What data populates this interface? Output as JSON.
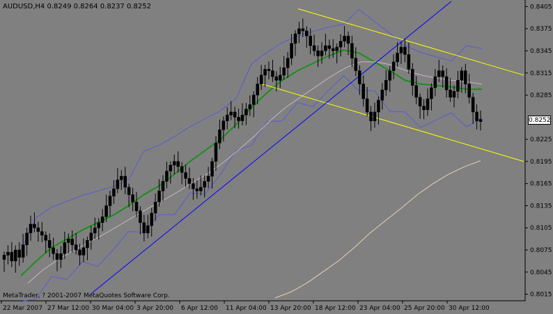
{
  "header": {
    "symbol_line": "AUDUSD,H4  0.8249 0.8264 0.8237 0.8252"
  },
  "footer": {
    "copyright": "MetaTrader, ? 2001-2007 MetaQuotes Software Corp."
  },
  "colors": {
    "background": "#808080",
    "candle": "#000000",
    "ma_fast": "#1a8f1a",
    "ma_slow": "#c8b4c8",
    "ma_long": "#e6d2b4",
    "bollinger": "#5a5ad2",
    "channel": "#ffff00",
    "trendline": "#0000ff",
    "grid_axis": "#000000"
  },
  "price_axis": {
    "labels": [
      "0.8405",
      "0.8375",
      "0.8345",
      "0.8315",
      "0.8285",
      "0.8252",
      "0.8225",
      "0.8195",
      "0.8165",
      "0.8135",
      "0.8105",
      "0.8075",
      "0.8045",
      "0.8015"
    ],
    "current": "0.8252"
  },
  "time_axis": {
    "labels": [
      "22 Mar 2007",
      "27 Mar 12:00",
      "30 Mar 04:00",
      "3 Apr 20:00",
      "6 Apr 12:00",
      "11 Apr 04:00",
      "13 Apr 20:00",
      "18 Apr 12:00",
      "23 Apr 04:00",
      "25 Apr 20:00",
      "30 Apr 12:00"
    ]
  },
  "chart_data": {
    "type": "candlestick",
    "symbol": "AUDUSD",
    "timeframe": "H4",
    "last_bar": {
      "open": 0.8249,
      "high": 0.8264,
      "low": 0.8237,
      "close": 0.8252
    },
    "ylim": [
      0.8008,
      0.8412
    ],
    "closes": [
      0.8068,
      0.8072,
      0.806,
      0.8075,
      0.8065,
      0.8082,
      0.8098,
      0.811,
      0.8105,
      0.81,
      0.8095,
      0.8088,
      0.8078,
      0.807,
      0.8062,
      0.807,
      0.8085,
      0.809,
      0.8082,
      0.8075,
      0.8068,
      0.8078,
      0.8088,
      0.8098,
      0.8105,
      0.8112,
      0.812,
      0.8135,
      0.8148,
      0.8158,
      0.817,
      0.8175,
      0.816,
      0.815,
      0.814,
      0.8128,
      0.8112,
      0.8098,
      0.8108,
      0.8125,
      0.814,
      0.8155,
      0.8168,
      0.8182,
      0.819,
      0.8195,
      0.8188,
      0.818,
      0.8172,
      0.8165,
      0.8158,
      0.8155,
      0.816,
      0.8168,
      0.8175,
      0.8195,
      0.822,
      0.8238,
      0.825,
      0.8258,
      0.8262,
      0.8255,
      0.825,
      0.8258,
      0.8266,
      0.8272,
      0.8285,
      0.83,
      0.8312,
      0.832,
      0.8318,
      0.831,
      0.8305,
      0.8312,
      0.8322,
      0.8335,
      0.8355,
      0.8368,
      0.8375,
      0.8372,
      0.8365,
      0.8352,
      0.8345,
      0.8338,
      0.8345,
      0.8352,
      0.8348,
      0.8345,
      0.835,
      0.8358,
      0.8365,
      0.8355,
      0.8335,
      0.8318,
      0.83,
      0.828,
      0.8262,
      0.825,
      0.8262,
      0.8278,
      0.8292,
      0.8305,
      0.8318,
      0.833,
      0.8342,
      0.835,
      0.834,
      0.832,
      0.8298,
      0.8282,
      0.827,
      0.8265,
      0.828,
      0.8295,
      0.831,
      0.8318,
      0.831,
      0.8292,
      0.8282,
      0.829,
      0.8305,
      0.8318,
      0.83,
      0.8282,
      0.8262,
      0.825,
      0.8252
    ],
    "series": [
      {
        "name": "",
        "kind": "ma",
        "values": [
          0.804,
          0.806,
          0.8078,
          0.809,
          0.8102,
          0.8112,
          0.8122,
          0.8135,
          0.815,
          0.8162,
          0.8178,
          0.8195,
          0.821,
          0.8225,
          0.8245,
          0.8268,
          0.8288,
          0.8305,
          0.8318,
          0.8328,
          0.8338,
          0.8346,
          0.8342,
          0.833,
          0.8318,
          0.8305,
          0.83,
          0.8298,
          0.8296,
          0.8293,
          0.8293
        ]
      },
      {
        "name": "",
        "kind": "ma",
        "values": [
          0.803,
          0.8048,
          0.8062,
          0.8074,
          0.8085,
          0.8096,
          0.8108,
          0.812,
          0.8132,
          0.8143,
          0.8155,
          0.8168,
          0.818,
          0.8195,
          0.8212,
          0.823,
          0.825,
          0.8268,
          0.8282,
          0.8296,
          0.831,
          0.8322,
          0.833,
          0.833,
          0.8326,
          0.8318,
          0.8312,
          0.8308,
          0.8305,
          0.8303,
          0.83
        ]
      },
      {
        "name": "",
        "kind": "ma",
        "values": [
          0.801,
          0.8018,
          0.803,
          0.8045,
          0.806,
          0.8078,
          0.8098,
          0.8115,
          0.8132,
          0.815,
          0.8165,
          0.8178,
          0.8188,
          0.8196
        ]
      }
    ],
    "channel_upper": {
      "from": [
        0.8402,
        0
      ],
      "to": [
        0.8312,
        1
      ]
    },
    "channel_lower": {
      "from": [
        0.83,
        0
      ],
      "to": [
        0.8195,
        1
      ]
    },
    "trendline": {
      "from": [
        0.8015,
        0
      ],
      "to": [
        0.8412,
        1
      ]
    },
    "grid": false
  }
}
